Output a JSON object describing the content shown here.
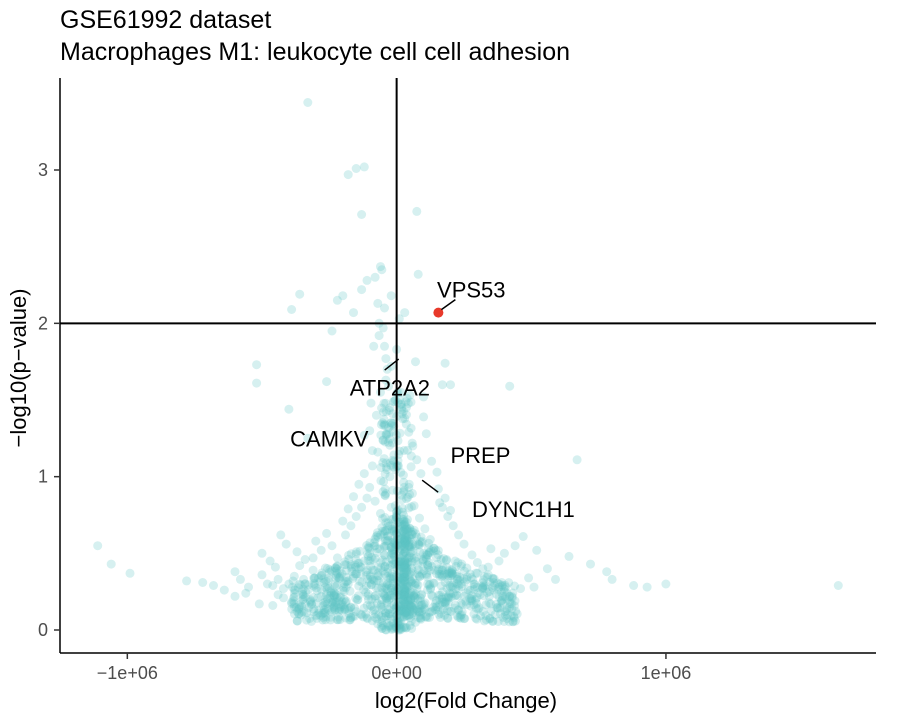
{
  "chart_data": {
    "type": "scatter",
    "title": "GSE61992 dataset",
    "subtitle": "Macrophages M1: leukocyte cell cell adhesion",
    "xlabel": "log2(Fold Change)",
    "ylabel": "−log10(p−value)",
    "xlim": [
      -1250000,
      1780000
    ],
    "ylim": [
      -0.15,
      3.6
    ],
    "x_ticks": [
      {
        "value": -1000000,
        "label": "−1e+06"
      },
      {
        "value": 0,
        "label": "0e+00"
      },
      {
        "value": 1000000,
        "label": "1e+06"
      }
    ],
    "y_ticks": [
      {
        "value": 0,
        "label": "0"
      },
      {
        "value": 1,
        "label": "1"
      },
      {
        "value": 2,
        "label": "2"
      },
      {
        "value": 3,
        "label": "3"
      }
    ],
    "reference_lines": {
      "vertical_x": 0,
      "horizontal_y": 2
    },
    "grid": false,
    "legend": "none",
    "colors": {
      "background_points": "#5bc4c4",
      "highlight_point": "#e8392a",
      "axis": "#000000"
    },
    "highlight_points": [
      {
        "x": 155000,
        "y": 2.07
      }
    ],
    "labels": [
      {
        "text": "VPS53",
        "x": 155000,
        "y": 2.07,
        "label_x": 150000,
        "label_y": 2.22
      },
      {
        "text": "ATP2A2",
        "x": 15000,
        "y": 1.78,
        "label_x": -25000,
        "label_y": 1.58
      },
      {
        "text": "CAMKV",
        "x": -120000,
        "y": 1.25,
        "label_x": -250000,
        "label_y": 1.25
      },
      {
        "text": "PREP",
        "x": 80000,
        "y": 1.14,
        "label_x": 200000,
        "label_y": 1.14
      },
      {
        "text": "DYNC1H1",
        "x": 80000,
        "y": 0.99,
        "label_x": 280000,
        "label_y": 0.79
      }
    ],
    "points": [
      [
        -1110000,
        0.55
      ],
      [
        -1060000,
        0.43
      ],
      [
        -990000,
        0.37
      ],
      [
        -780000,
        0.32
      ],
      [
        -720000,
        0.31
      ],
      [
        -680000,
        0.29
      ],
      [
        -600000,
        0.38
      ],
      [
        -580000,
        0.33
      ],
      [
        -560000,
        0.24
      ],
      [
        -520000,
        1.73
      ],
      [
        -520000,
        1.61
      ],
      [
        -500000,
        0.36
      ],
      [
        -480000,
        0.3
      ],
      [
        -460000,
        0.29
      ],
      [
        -440000,
        0.23
      ],
      [
        -460000,
        0.16
      ],
      [
        -510000,
        0.17
      ],
      [
        -400000,
        1.44
      ],
      [
        -360000,
        2.19
      ],
      [
        -390000,
        2.09
      ],
      [
        -330000,
        1.25
      ],
      [
        -260000,
        1.62
      ],
      [
        -240000,
        1.95
      ],
      [
        -220000,
        2.15
      ],
      [
        -200000,
        2.18
      ],
      [
        -160000,
        2.07
      ],
      [
        -130000,
        2.22
      ],
      [
        -110000,
        2.28
      ],
      [
        -120000,
        1.27
      ],
      [
        -100000,
        1.3
      ],
      [
        -90000,
        1.17
      ],
      [
        -80000,
        2.3
      ],
      [
        -70000,
        2.13
      ],
      [
        -65000,
        2.0
      ],
      [
        -60000,
        2.37
      ],
      [
        -55000,
        2.35
      ],
      [
        -50000,
        1.97
      ],
      [
        -45000,
        1.85
      ],
      [
        -40000,
        1.77
      ],
      [
        -35000,
        1.7
      ],
      [
        -30000,
        1.59
      ],
      [
        -25000,
        1.45
      ],
      [
        -20000,
        1.35
      ],
      [
        -15000,
        1.22
      ],
      [
        -10000,
        1.1
      ],
      [
        -330000,
        3.44
      ],
      [
        -180000,
        2.97
      ],
      [
        -150000,
        3.01
      ],
      [
        -120000,
        3.02
      ],
      [
        -130000,
        2.71
      ],
      [
        75000,
        2.73
      ],
      [
        80000,
        2.32
      ],
      [
        -20000,
        2.18
      ],
      [
        30000,
        2.07
      ],
      [
        10000,
        2.03
      ],
      [
        70000,
        1.75
      ],
      [
        180000,
        1.74
      ],
      [
        170000,
        1.6
      ],
      [
        200000,
        1.6
      ],
      [
        100000,
        1.52
      ],
      [
        100000,
        1.39
      ],
      [
        110000,
        1.28
      ],
      [
        130000,
        1.1
      ],
      [
        150000,
        1.03
      ],
      [
        155000,
        0.92
      ],
      [
        160000,
        0.83
      ],
      [
        180000,
        0.86
      ],
      [
        200000,
        0.78
      ],
      [
        420000,
        1.59
      ],
      [
        670000,
        1.11
      ],
      [
        640000,
        0.48
      ],
      [
        560000,
        0.4
      ],
      [
        590000,
        0.33
      ],
      [
        720000,
        0.43
      ],
      [
        780000,
        0.38
      ],
      [
        800000,
        0.33
      ],
      [
        880000,
        0.29
      ],
      [
        930000,
        0.28
      ],
      [
        1000000,
        0.3
      ],
      [
        1640000,
        0.29
      ],
      [
        470000,
        0.61
      ],
      [
        520000,
        0.52
      ],
      [
        440000,
        0.55
      ],
      [
        400000,
        0.5
      ],
      [
        380000,
        0.45
      ],
      [
        340000,
        0.41
      ],
      [
        300000,
        0.37
      ],
      [
        260000,
        0.33
      ],
      [
        240000,
        0.3
      ],
      [
        220000,
        0.27
      ],
      [
        -310000,
        0.39
      ],
      [
        -340000,
        0.46
      ],
      [
        -370000,
        0.51
      ],
      [
        -410000,
        0.56
      ],
      [
        -430000,
        0.62
      ],
      [
        -290000,
        0.34
      ],
      [
        -270000,
        0.31
      ],
      [
        -250000,
        0.27
      ],
      [
        -230000,
        0.24
      ],
      [
        -210000,
        0.21
      ],
      [
        -190000,
        0.18
      ],
      [
        -170000,
        0.15
      ],
      [
        -150000,
        0.12
      ],
      [
        -130000,
        0.1
      ],
      [
        -110000,
        0.08
      ],
      [
        -90000,
        0.06
      ],
      [
        -70000,
        0.04
      ],
      [
        -50000,
        0.03
      ],
      [
        -30000,
        0.02
      ],
      [
        -10000,
        0.01
      ],
      [
        10000,
        0.01
      ],
      [
        30000,
        0.02
      ],
      [
        50000,
        0.03
      ],
      [
        70000,
        0.05
      ],
      [
        90000,
        0.07
      ],
      [
        110000,
        0.09
      ],
      [
        130000,
        0.12
      ],
      [
        150000,
        0.15
      ],
      [
        170000,
        0.18
      ],
      [
        190000,
        0.21
      ],
      [
        210000,
        0.24
      ],
      [
        230000,
        0.27
      ],
      [
        -600000,
        0.22
      ],
      [
        -550000,
        0.28
      ],
      [
        -640000,
        0.26
      ],
      [
        -420000,
        0.21
      ],
      [
        -350000,
        0.25
      ],
      [
        -320000,
        0.19
      ],
      [
        -280000,
        0.22
      ],
      [
        -260000,
        0.14
      ],
      [
        -240000,
        0.18
      ],
      [
        -200000,
        0.26
      ],
      [
        -180000,
        0.3
      ],
      [
        -160000,
        0.35
      ],
      [
        -140000,
        0.4
      ],
      [
        -120000,
        0.45
      ],
      [
        -100000,
        0.5
      ],
      [
        -80000,
        0.55
      ],
      [
        -60000,
        0.62
      ],
      [
        -40000,
        0.7
      ],
      [
        -20000,
        0.8
      ],
      [
        20000,
        0.85
      ],
      [
        40000,
        0.72
      ],
      [
        60000,
        0.64
      ],
      [
        80000,
        0.56
      ],
      [
        100000,
        0.5
      ],
      [
        120000,
        0.44
      ],
      [
        140000,
        0.39
      ],
      [
        160000,
        0.35
      ],
      [
        180000,
        0.31
      ],
      [
        200000,
        0.28
      ],
      [
        250000,
        0.22
      ],
      [
        280000,
        0.19
      ],
      [
        310000,
        0.23
      ],
      [
        330000,
        0.29
      ],
      [
        360000,
        0.26
      ],
      [
        390000,
        0.31
      ],
      [
        410000,
        0.24
      ],
      [
        430000,
        0.21
      ],
      [
        460000,
        0.27
      ],
      [
        490000,
        0.34
      ],
      [
        510000,
        0.28
      ],
      [
        -220000,
        0.47
      ],
      [
        -240000,
        0.55
      ],
      [
        -260000,
        0.63
      ],
      [
        -200000,
        0.71
      ],
      [
        -180000,
        0.79
      ],
      [
        -160000,
        0.87
      ],
      [
        -140000,
        0.95
      ],
      [
        -120000,
        1.02
      ],
      [
        -100000,
        0.93
      ],
      [
        -80000,
        0.84
      ],
      [
        -60000,
        0.76
      ],
      [
        -40000,
        0.89
      ],
      [
        -25000,
        1.0
      ],
      [
        25000,
        1.01
      ],
      [
        45000,
        0.93
      ],
      [
        65000,
        0.81
      ],
      [
        85000,
        0.73
      ],
      [
        105000,
        0.66
      ],
      [
        125000,
        0.59
      ],
      [
        145000,
        0.52
      ],
      [
        165000,
        0.46
      ],
      [
        185000,
        0.41
      ],
      [
        205000,
        0.37
      ],
      [
        225000,
        0.33
      ],
      [
        -500000,
        0.5
      ],
      [
        -470000,
        0.45
      ],
      [
        -450000,
        0.41
      ],
      [
        -300000,
        0.58
      ],
      [
        -280000,
        0.52
      ],
      [
        -310000,
        0.47
      ],
      [
        -380000,
        0.35
      ],
      [
        -400000,
        0.3
      ],
      [
        -420000,
        0.27
      ],
      [
        -440000,
        0.33
      ],
      [
        -360000,
        0.42
      ],
      [
        -340000,
        0.3
      ],
      [
        280000,
        0.49
      ],
      [
        300000,
        0.44
      ],
      [
        320000,
        0.4
      ],
      [
        340000,
        0.36
      ],
      [
        360000,
        0.31
      ],
      [
        380000,
        0.28
      ],
      [
        400000,
        0.25
      ],
      [
        420000,
        0.22
      ],
      [
        440000,
        0.19
      ],
      [
        350000,
        0.53
      ],
      [
        250000,
        0.56
      ],
      [
        230000,
        0.62
      ],
      [
        210000,
        0.68
      ],
      [
        190000,
        0.74
      ],
      [
        170000,
        0.8
      ],
      [
        -190000,
        0.62
      ],
      [
        -170000,
        0.68
      ],
      [
        -150000,
        0.74
      ],
      [
        -130000,
        0.8
      ],
      [
        -110000,
        0.86
      ],
      [
        -90000,
        1.07
      ],
      [
        -70000,
        1.16
      ],
      [
        -50000,
        1.24
      ],
      [
        -30000,
        1.32
      ],
      [
        -15000,
        1.41
      ],
      [
        -5000,
        1.5
      ],
      [
        5000,
        1.55
      ],
      [
        15000,
        1.47
      ],
      [
        30000,
        1.38
      ],
      [
        45000,
        1.29
      ],
      [
        60000,
        1.2
      ],
      [
        75000,
        1.11
      ],
      [
        90000,
        1.02
      ],
      [
        -75000,
        1.4
      ],
      [
        -95000,
        1.48
      ],
      [
        -60000,
        1.55
      ],
      [
        -40000,
        1.63
      ],
      [
        -20000,
        1.72
      ],
      [
        0,
        1.83
      ],
      [
        -85000,
        1.85
      ],
      [
        -65000,
        1.92
      ],
      [
        -45000,
        2.1
      ]
    ]
  }
}
